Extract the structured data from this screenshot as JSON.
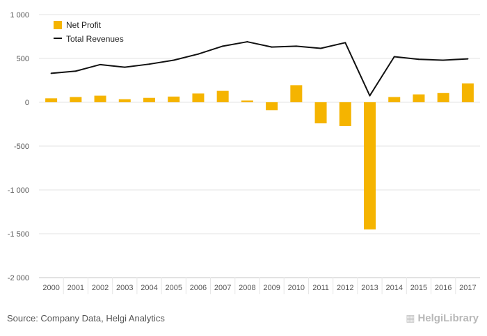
{
  "chart_data": {
    "type": "bar",
    "categories": [
      "2000",
      "2001",
      "2002",
      "2003",
      "2004",
      "2005",
      "2006",
      "2007",
      "2008",
      "2009",
      "2010",
      "2011",
      "2012",
      "2013",
      "2014",
      "2015",
      "2016",
      "2017"
    ],
    "series": [
      {
        "name": "Net Profit",
        "type": "bar",
        "color": "#f5b400",
        "values": [
          45,
          60,
          75,
          35,
          50,
          65,
          100,
          130,
          20,
          -90,
          195,
          -240,
          -270,
          -1450,
          60,
          90,
          105,
          215
        ]
      },
      {
        "name": "Total Revenues",
        "type": "line",
        "color": "#111111",
        "values": [
          330,
          355,
          430,
          400,
          435,
          480,
          550,
          640,
          690,
          630,
          640,
          615,
          680,
          75,
          520,
          490,
          480,
          495
        ]
      }
    ],
    "yticks": [
      "1 000",
      "500",
      "0",
      "-500",
      "-1 000",
      "-1 500",
      "-2 000"
    ],
    "ylim": [
      -2000,
      1000
    ],
    "grid": true,
    "legend_position": "top-left"
  },
  "source": "Source: Company Data, Helgi Analytics",
  "logo": {
    "text": "HelgiLibrary",
    "icon": "building-icon"
  }
}
